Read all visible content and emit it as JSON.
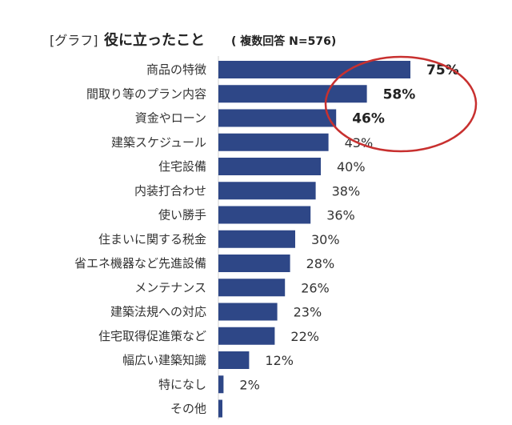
{
  "title": {
    "tag": "[グラフ]",
    "main": "役に立ったこと",
    "sub": "( 複数回答  N=576)"
  },
  "colors": {
    "bar": "#2e4787",
    "highlight_ellipse": "#c8302f",
    "text": "#333333"
  },
  "chart_data": {
    "type": "bar",
    "orientation": "horizontal",
    "title": "役に立ったこと",
    "categories": [
      "商品の特徴",
      "間取り等のプラン内容",
      "資金やローン",
      "建築スケジュール",
      "住宅設備",
      "内装打合わせ",
      "使い勝手",
      "住まいに関する税金",
      "省エネ機器など先進設備",
      "メンテナンス",
      "建築法規への対応",
      "住宅取得促進策など",
      "幅広い建築知識",
      "特になし",
      "その他"
    ],
    "values": [
      75,
      58,
      46,
      43,
      40,
      38,
      36,
      30,
      28,
      26,
      23,
      22,
      12,
      2,
      1
    ],
    "value_labels": [
      "75%",
      "58%",
      "46%",
      "43%",
      "40%",
      "38%",
      "36%",
      "30%",
      "28%",
      "26%",
      "23%",
      "22%",
      "12%",
      "2%",
      ""
    ],
    "highlighted": [
      true,
      true,
      true,
      false,
      false,
      false,
      false,
      false,
      false,
      false,
      false,
      false,
      false,
      false,
      false
    ],
    "unit": "%",
    "xlim": [
      0,
      100
    ],
    "grid": false,
    "legend": "none"
  }
}
